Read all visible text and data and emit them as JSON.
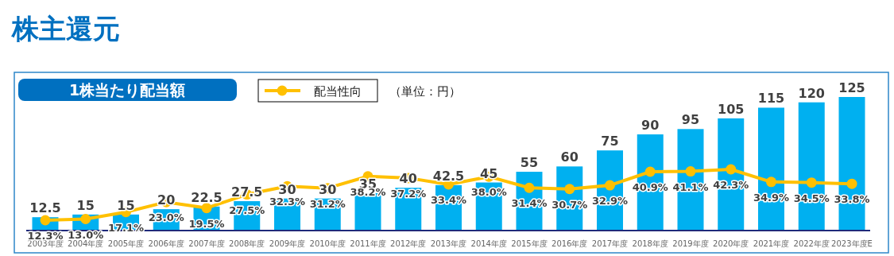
{
  "chart_data": {
    "type": "bar",
    "title": "株主還元",
    "subtitle": "1株当たり配当額",
    "annotations": [
      "（単位：円）"
    ],
    "categories": [
      "2003年度",
      "2004年度",
      "2005年度",
      "2006年度",
      "2007年度",
      "2008年度",
      "2009年度",
      "2010年度",
      "2011年度",
      "2012年度",
      "2013年度",
      "2014年度",
      "2015年度",
      "2016年度",
      "2017年度",
      "2018年度",
      "2019年度",
      "2020年度",
      "2021年度",
      "2022年度",
      "2023年度E"
    ],
    "legend": "top",
    "marker": "circle",
    "series": [
      {
        "color": "#00b0f0",
        "values": [
          12.5,
          15,
          15,
          20,
          22.5,
          27.5,
          30,
          30,
          35,
          40,
          42.5,
          45,
          55,
          60,
          75,
          90,
          95,
          105,
          115,
          120,
          125
        ],
        "value_labels": [
          "12.5",
          "15",
          "15",
          "20",
          "22.5",
          "27.5",
          "30",
          "30",
          "35",
          "40",
          "42.5",
          "45",
          "55",
          "60",
          "75",
          "90",
          "95",
          "105",
          "115",
          "120",
          "125"
        ]
      },
      {
        "type": "line",
        "name": "配当性向",
        "color": "#ffc000",
        "axis": "y2",
        "values": [
          12.3,
          13.0,
          17.1,
          23.0,
          19.5,
          27.5,
          32.3,
          31.2,
          38.2,
          37.2,
          33.4,
          38.0,
          31.4,
          30.7,
          32.9,
          40.9,
          41.1,
          42.3,
          34.9,
          34.5,
          33.8
        ],
        "value_labels": [
          "12.3%",
          "13.0%",
          "17.1%",
          "23.0%",
          "19.5%",
          "27.5%",
          "32.3%",
          "31.2%",
          "38.2%",
          "37.2%",
          "33.4%",
          "38.0%",
          "31.4%",
          "30.7%",
          "32.9%",
          "40.9%",
          "41.1%",
          "42.3%",
          "34.9%",
          "34.5%",
          "33.8%"
        ]
      }
    ]
  }
}
